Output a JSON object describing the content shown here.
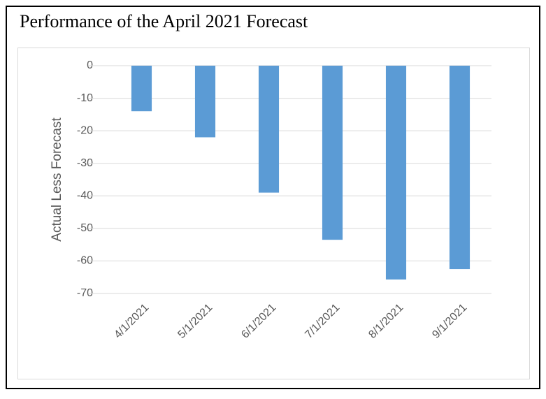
{
  "chart_data": {
    "type": "bar",
    "title": "Performance of the April 2021 Forecast",
    "y_label": "Actual Less Forecast",
    "categories": [
      "4/1/2021",
      "5/1/2021",
      "6/1/2021",
      "7/1/2021",
      "8/1/2021",
      "9/1/2021"
    ],
    "values": [
      -14,
      -22,
      -39,
      -53.5,
      -65.7,
      -62.5
    ],
    "color": "#5b9bd5",
    "ylim": [
      -70,
      0
    ],
    "yticks": [
      0,
      -10,
      -20,
      -30,
      -40,
      -50,
      -60,
      -70
    ],
    "grid": true
  }
}
